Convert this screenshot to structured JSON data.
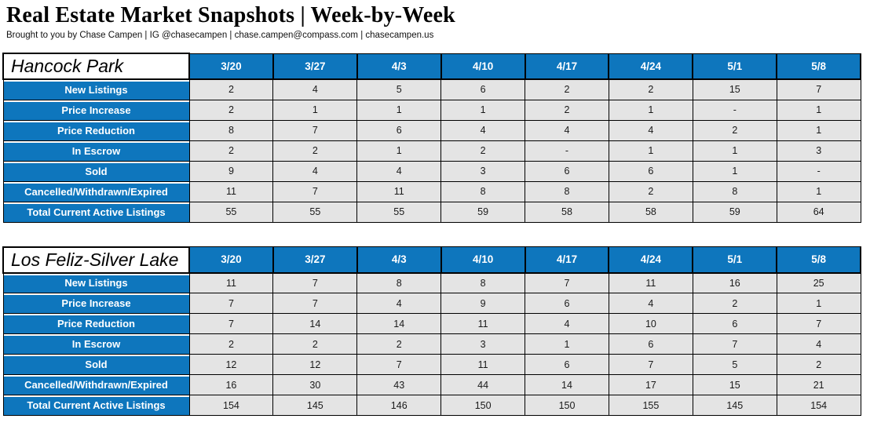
{
  "page": {
    "title": "Real Estate Market Snapshots | Week-by-Week",
    "subtitle": "Brought to you by Chase Campen | IG @chasecampen | chase.campen@compass.com | chasecampen.us"
  },
  "colors": {
    "header_blue": "#0e76bd",
    "cell_gray": "#e4e4e4",
    "border": "#000000",
    "header_text": "#ffffff"
  },
  "weeks": [
    "3/20",
    "3/27",
    "4/3",
    "4/10",
    "4/17",
    "4/24",
    "5/1",
    "5/8"
  ],
  "tables": [
    {
      "name": "Hancock Park",
      "slug": "hancock-park",
      "rows": [
        {
          "label": "New Listings",
          "values": [
            "2",
            "4",
            "5",
            "6",
            "2",
            "2",
            "15",
            "7"
          ]
        },
        {
          "label": "Price Increase",
          "values": [
            "2",
            "1",
            "1",
            "1",
            "2",
            "1",
            "-",
            "1"
          ]
        },
        {
          "label": "Price Reduction",
          "values": [
            "8",
            "7",
            "6",
            "4",
            "4",
            "4",
            "2",
            "1"
          ]
        },
        {
          "label": "In Escrow",
          "values": [
            "2",
            "2",
            "1",
            "2",
            "-",
            "1",
            "1",
            "3"
          ]
        },
        {
          "label": "Sold",
          "values": [
            "9",
            "4",
            "4",
            "3",
            "6",
            "6",
            "1",
            "-"
          ]
        },
        {
          "label": "Cancelled/Withdrawn/Expired",
          "values": [
            "11",
            "7",
            "11",
            "8",
            "8",
            "2",
            "8",
            "1"
          ]
        },
        {
          "label": "Total Current Active Listings",
          "values": [
            "55",
            "55",
            "55",
            "59",
            "58",
            "58",
            "59",
            "64"
          ]
        }
      ]
    },
    {
      "name": "Los Feliz-Silver Lake",
      "slug": "los-feliz-silver-lake",
      "rows": [
        {
          "label": "New Listings",
          "values": [
            "11",
            "7",
            "8",
            "8",
            "7",
            "11",
            "16",
            "25"
          ]
        },
        {
          "label": "Price Increase",
          "values": [
            "7",
            "7",
            "4",
            "9",
            "6",
            "4",
            "2",
            "1"
          ]
        },
        {
          "label": "Price Reduction",
          "values": [
            "7",
            "14",
            "14",
            "11",
            "4",
            "10",
            "6",
            "7"
          ]
        },
        {
          "label": "In Escrow",
          "values": [
            "2",
            "2",
            "2",
            "3",
            "1",
            "6",
            "7",
            "4"
          ]
        },
        {
          "label": "Sold",
          "values": [
            "12",
            "12",
            "7",
            "11",
            "6",
            "7",
            "5",
            "2"
          ]
        },
        {
          "label": "Cancelled/Withdrawn/Expired",
          "values": [
            "16",
            "30",
            "43",
            "44",
            "14",
            "17",
            "15",
            "21"
          ]
        },
        {
          "label": "Total Current Active Listings",
          "values": [
            "154",
            "145",
            "146",
            "150",
            "150",
            "155",
            "145",
            "154"
          ]
        }
      ]
    }
  ]
}
